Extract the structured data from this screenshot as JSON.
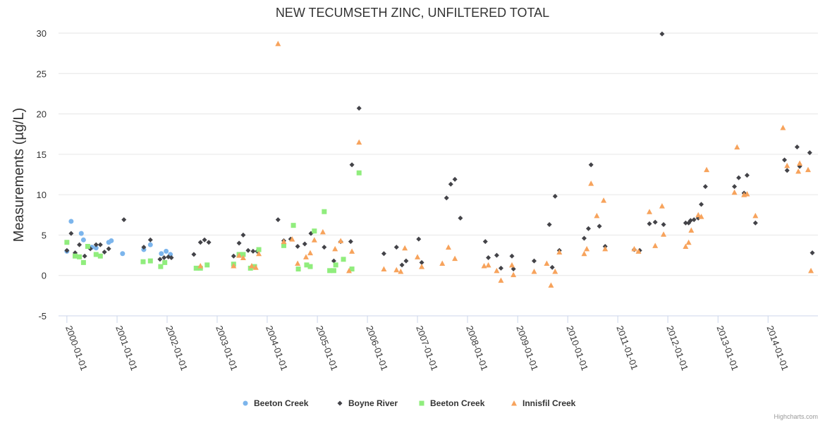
{
  "chart_data": {
    "type": "scatter",
    "title": "NEW TECUMSETH ZINC, UNFILTERED TOTAL",
    "ylabel": "Measurements (µg/L)",
    "xlabel": "",
    "ylim": [
      -5,
      30
    ],
    "yticks": [
      -5,
      0,
      5,
      10,
      15,
      20,
      25,
      30
    ],
    "xlim": [
      "1999-11-01",
      "2014-12-31"
    ],
    "xticks": [
      "2000-01-01",
      "2001-01-01",
      "2002-01-01",
      "2003-01-01",
      "2004-01-01",
      "2005-01-01",
      "2006-01-01",
      "2007-01-01",
      "2008-01-01",
      "2009-01-01",
      "2010-01-01",
      "2011-01-01",
      "2012-01-01",
      "2013-01-01",
      "2014-01-01"
    ],
    "grid": true,
    "legend_position": "bottom-center",
    "credit": "Highcharts.com",
    "series": [
      {
        "name": "Beeton Creek",
        "color": "#7cb5ec",
        "marker": "circle",
        "points": [
          [
            "2000-01-01",
            3.0
          ],
          [
            "2000-02-01",
            6.7
          ],
          [
            "2000-04-15",
            5.2
          ],
          [
            "2000-05-01",
            4.4
          ],
          [
            "2000-07-01",
            3.5
          ],
          [
            "2000-08-01",
            3.4
          ],
          [
            "2000-11-01",
            4.1
          ],
          [
            "2000-11-20",
            4.3
          ],
          [
            "2001-02-10",
            2.7
          ],
          [
            "2001-07-15",
            3.2
          ],
          [
            "2001-09-01",
            3.8
          ],
          [
            "2001-11-20",
            2.7
          ],
          [
            "2001-12-25",
            3.0
          ],
          [
            "2002-01-25",
            2.6
          ]
        ]
      },
      {
        "name": "Boyne River",
        "color": "#434348",
        "marker": "diamond",
        "points": [
          [
            "2000-01-01",
            3.1
          ],
          [
            "2000-02-01",
            5.2
          ],
          [
            "2000-03-01",
            2.8
          ],
          [
            "2000-04-01",
            3.8
          ],
          [
            "2000-05-10",
            2.4
          ],
          [
            "2000-06-20",
            3.3
          ],
          [
            "2000-08-01",
            3.8
          ],
          [
            "2000-09-01",
            3.8
          ],
          [
            "2000-10-01",
            2.9
          ],
          [
            "2000-11-01",
            3.3
          ],
          [
            "2001-02-20",
            6.9
          ],
          [
            "2001-07-15",
            3.5
          ],
          [
            "2001-09-01",
            4.4
          ],
          [
            "2001-11-10",
            2.0
          ],
          [
            "2001-12-10",
            2.2
          ],
          [
            "2002-01-10",
            2.3
          ],
          [
            "2002-02-01",
            2.2
          ],
          [
            "2002-07-15",
            2.6
          ],
          [
            "2002-09-01",
            4.1
          ],
          [
            "2002-10-01",
            4.4
          ],
          [
            "2002-11-01",
            4.1
          ],
          [
            "2003-05-01",
            2.4
          ],
          [
            "2003-06-10",
            4.0
          ],
          [
            "2003-07-10",
            5.0
          ],
          [
            "2003-08-15",
            3.1
          ],
          [
            "2003-09-20",
            3.0
          ],
          [
            "2003-10-20",
            3.0
          ],
          [
            "2004-03-20",
            6.9
          ],
          [
            "2004-05-01",
            4.3
          ],
          [
            "2004-06-20",
            4.5
          ],
          [
            "2004-08-10",
            3.6
          ],
          [
            "2004-10-01",
            3.9
          ],
          [
            "2004-11-15",
            5.2
          ],
          [
            "2005-02-20",
            3.5
          ],
          [
            "2005-05-01",
            1.8
          ],
          [
            "2005-06-20",
            4.2
          ],
          [
            "2005-09-01",
            4.2
          ],
          [
            "2005-09-10",
            13.7
          ],
          [
            "2005-11-01",
            20.7
          ],
          [
            "2006-05-01",
            2.7
          ],
          [
            "2006-08-01",
            3.5
          ],
          [
            "2006-09-10",
            1.3
          ],
          [
            "2006-10-10",
            1.8
          ],
          [
            "2007-01-10",
            4.5
          ],
          [
            "2007-02-01",
            1.6
          ],
          [
            "2007-08-01",
            9.6
          ],
          [
            "2007-09-01",
            11.3
          ],
          [
            "2007-10-01",
            11.9
          ],
          [
            "2007-11-10",
            7.1
          ],
          [
            "2008-05-10",
            4.2
          ],
          [
            "2008-06-01",
            2.2
          ],
          [
            "2008-08-01",
            2.5
          ],
          [
            "2008-09-01",
            0.9
          ],
          [
            "2008-11-20",
            2.4
          ],
          [
            "2008-12-01",
            0.8
          ],
          [
            "2009-05-01",
            1.8
          ],
          [
            "2009-08-20",
            6.3
          ],
          [
            "2009-09-10",
            1.0
          ],
          [
            "2009-10-01",
            9.8
          ],
          [
            "2009-11-01",
            3.1
          ],
          [
            "2010-05-01",
            4.6
          ],
          [
            "2010-06-01",
            5.8
          ],
          [
            "2010-06-20",
            13.7
          ],
          [
            "2010-08-20",
            6.1
          ],
          [
            "2010-10-01",
            3.6
          ],
          [
            "2011-05-01",
            3.2
          ],
          [
            "2011-06-10",
            3.1
          ],
          [
            "2011-08-20",
            6.4
          ],
          [
            "2011-10-01",
            6.6
          ],
          [
            "2011-11-20",
            29.9
          ],
          [
            "2011-12-01",
            6.3
          ],
          [
            "2012-05-10",
            6.5
          ],
          [
            "2012-06-01",
            6.5
          ],
          [
            "2012-06-15",
            6.8
          ],
          [
            "2012-07-10",
            6.9
          ],
          [
            "2012-08-10",
            7.1
          ],
          [
            "2012-09-01",
            8.8
          ],
          [
            "2012-10-01",
            11.0
          ],
          [
            "2013-05-01",
            11.0
          ],
          [
            "2013-06-01",
            12.1
          ],
          [
            "2013-07-10",
            10.2
          ],
          [
            "2013-08-01",
            12.4
          ],
          [
            "2013-10-01",
            6.5
          ],
          [
            "2014-05-01",
            14.3
          ],
          [
            "2014-05-20",
            13.0
          ],
          [
            "2014-08-01",
            15.9
          ],
          [
            "2014-08-20",
            13.5
          ],
          [
            "2014-11-01",
            15.2
          ],
          [
            "2014-11-20",
            2.8
          ]
        ]
      },
      {
        "name": "Beeton Creek",
        "color": "#90ed7d",
        "marker": "square",
        "points": [
          [
            "2000-01-01",
            4.1
          ],
          [
            "2000-03-01",
            2.4
          ],
          [
            "2000-04-01",
            2.3
          ],
          [
            "2000-05-01",
            1.6
          ],
          [
            "2000-06-01",
            3.6
          ],
          [
            "2000-08-01",
            2.6
          ],
          [
            "2000-09-01",
            2.4
          ],
          [
            "2001-07-10",
            1.7
          ],
          [
            "2001-09-01",
            1.8
          ],
          [
            "2001-11-15",
            1.1
          ],
          [
            "2001-12-15",
            1.6
          ],
          [
            "2002-08-01",
            0.9
          ],
          [
            "2002-09-01",
            0.9
          ],
          [
            "2002-10-20",
            1.3
          ],
          [
            "2003-05-01",
            1.4
          ],
          [
            "2003-06-10",
            2.6
          ],
          [
            "2003-07-10",
            2.6
          ],
          [
            "2003-09-01",
            0.9
          ],
          [
            "2003-10-01",
            1.1
          ],
          [
            "2003-11-01",
            3.2
          ],
          [
            "2004-05-01",
            3.7
          ],
          [
            "2004-07-10",
            6.2
          ],
          [
            "2004-08-15",
            0.8
          ],
          [
            "2004-10-15",
            1.3
          ],
          [
            "2004-11-10",
            1.1
          ],
          [
            "2004-12-10",
            5.5
          ],
          [
            "2005-02-20",
            7.9
          ],
          [
            "2005-04-01",
            0.6
          ],
          [
            "2005-05-01",
            0.6
          ],
          [
            "2005-05-15",
            1.3
          ],
          [
            "2005-07-10",
            2.0
          ],
          [
            "2005-09-10",
            0.8
          ],
          [
            "2005-11-01",
            12.7
          ]
        ]
      },
      {
        "name": "Innisfil Creek",
        "color": "#f7a35c",
        "marker": "triangle",
        "points": [
          [
            "2002-09-01",
            1.2
          ],
          [
            "2003-05-01",
            1.2
          ],
          [
            "2003-06-10",
            2.5
          ],
          [
            "2003-07-10",
            2.2
          ],
          [
            "2003-09-10",
            1.2
          ],
          [
            "2003-10-10",
            1.0
          ],
          [
            "2003-11-01",
            2.7
          ],
          [
            "2004-03-20",
            28.7
          ],
          [
            "2004-05-01",
            4.2
          ],
          [
            "2004-07-01",
            4.5
          ],
          [
            "2004-08-10",
            1.5
          ],
          [
            "2004-10-10",
            2.3
          ],
          [
            "2004-11-10",
            2.8
          ],
          [
            "2004-12-10",
            4.4
          ],
          [
            "2005-02-10",
            5.4
          ],
          [
            "2005-05-10",
            3.3
          ],
          [
            "2005-06-20",
            4.3
          ],
          [
            "2005-08-20",
            0.6
          ],
          [
            "2005-09-10",
            3.0
          ],
          [
            "2005-11-01",
            16.5
          ],
          [
            "2006-05-01",
            0.8
          ],
          [
            "2006-08-01",
            0.7
          ],
          [
            "2006-09-01",
            0.5
          ],
          [
            "2006-10-01",
            3.4
          ],
          [
            "2007-01-01",
            2.3
          ],
          [
            "2007-02-01",
            1.1
          ],
          [
            "2007-07-01",
            1.5
          ],
          [
            "2007-08-15",
            3.5
          ],
          [
            "2007-10-01",
            2.1
          ],
          [
            "2008-05-01",
            1.2
          ],
          [
            "2008-06-01",
            1.3
          ],
          [
            "2008-08-01",
            0.6
          ],
          [
            "2008-09-01",
            -0.6
          ],
          [
            "2008-11-20",
            1.3
          ],
          [
            "2008-12-01",
            0.1
          ],
          [
            "2009-05-01",
            0.5
          ],
          [
            "2009-08-01",
            1.5
          ],
          [
            "2009-09-01",
            -1.2
          ],
          [
            "2009-10-01",
            0.5
          ],
          [
            "2009-11-01",
            2.9
          ],
          [
            "2010-05-01",
            2.7
          ],
          [
            "2010-05-20",
            3.3
          ],
          [
            "2010-06-20",
            11.4
          ],
          [
            "2010-08-01",
            7.4
          ],
          [
            "2010-09-20",
            9.3
          ],
          [
            "2010-10-01",
            3.3
          ],
          [
            "2011-05-01",
            3.3
          ],
          [
            "2011-06-01",
            3.0
          ],
          [
            "2011-08-20",
            7.9
          ],
          [
            "2011-10-01",
            3.7
          ],
          [
            "2011-11-20",
            8.6
          ],
          [
            "2011-12-01",
            5.1
          ],
          [
            "2012-05-10",
            3.6
          ],
          [
            "2012-06-01",
            4.1
          ],
          [
            "2012-06-20",
            5.6
          ],
          [
            "2012-08-10",
            7.5
          ],
          [
            "2012-09-01",
            7.3
          ],
          [
            "2012-10-10",
            13.1
          ],
          [
            "2013-05-01",
            10.3
          ],
          [
            "2013-05-20",
            15.9
          ],
          [
            "2013-07-10",
            10.0
          ],
          [
            "2013-08-01",
            10.1
          ],
          [
            "2013-10-01",
            7.4
          ],
          [
            "2014-04-20",
            18.3
          ],
          [
            "2014-05-20",
            13.6
          ],
          [
            "2014-08-10",
            12.9
          ],
          [
            "2014-08-20",
            13.9
          ],
          [
            "2014-10-20",
            13.1
          ],
          [
            "2014-11-10",
            0.6
          ]
        ]
      }
    ]
  }
}
